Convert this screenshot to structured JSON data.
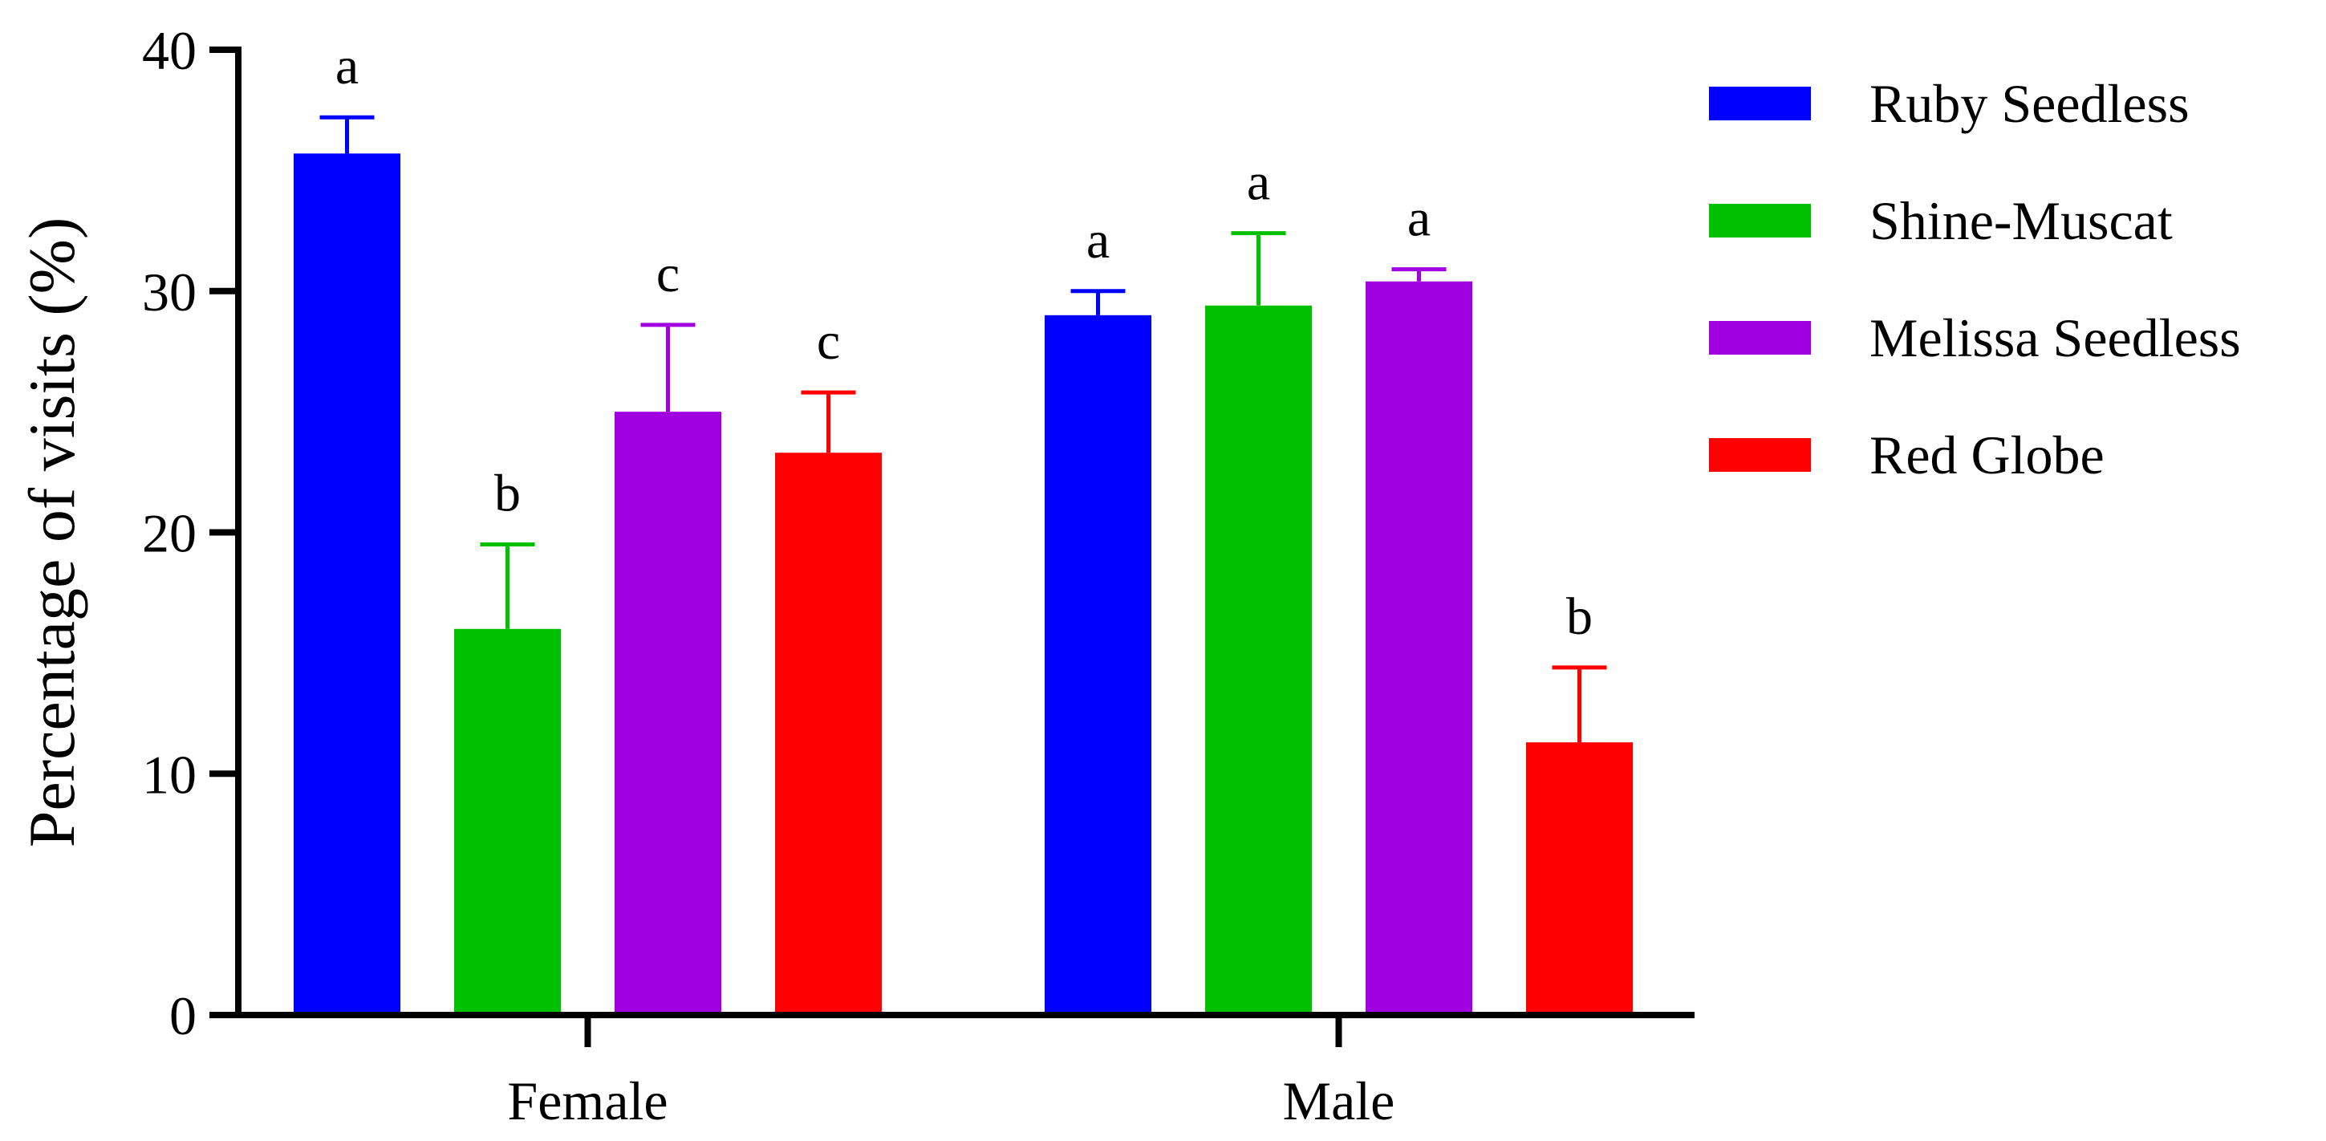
{
  "chart_data": {
    "type": "bar",
    "title": "",
    "xlabel": "",
    "ylabel": "Percentage of visits (%)",
    "ylim": [
      0,
      40
    ],
    "yticks": [
      0,
      10,
      20,
      30,
      40
    ],
    "categories": [
      "Female",
      "Male"
    ],
    "legend_position": "right",
    "series": [
      {
        "name": "Ruby Seedless",
        "color": "#0000ff",
        "values": [
          35.7,
          29.0
        ],
        "errors": [
          1.5,
          1.0
        ],
        "significance": [
          "a",
          "a"
        ]
      },
      {
        "name": "Shine-Muscat",
        "color": "#00c000",
        "values": [
          16.0,
          29.4
        ],
        "errors": [
          3.5,
          3.0
        ],
        "significance": [
          "b",
          "a"
        ]
      },
      {
        "name": "Melissa Seedless",
        "color": "#a000e0",
        "values": [
          25.0,
          30.4
        ],
        "errors": [
          3.6,
          0.5
        ],
        "significance": [
          "c",
          "a"
        ]
      },
      {
        "name": "Red Globe",
        "color": "#ff0000",
        "values": [
          23.3,
          11.3
        ],
        "errors": [
          2.5,
          3.1
        ],
        "significance": [
          "c",
          "b"
        ]
      }
    ]
  }
}
